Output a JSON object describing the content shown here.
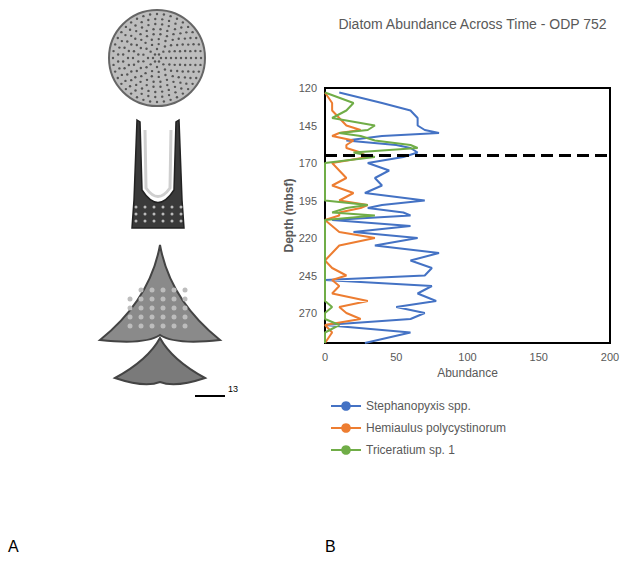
{
  "panel_labels": [
    "A",
    "B"
  ],
  "figure_a": {
    "scale_bar_label": "13"
  },
  "chart_data": {
    "type": "line",
    "title": "Diatom Abundance Across Time - ODP 752",
    "x_label": "Abundance",
    "y_label": "Depth (mbsf)",
    "orientation": "horizontal",
    "depth": [
      123,
      130,
      135,
      140,
      145,
      148,
      150,
      152,
      155,
      158,
      160,
      163,
      166,
      170,
      175,
      180,
      185,
      190,
      195,
      198,
      200,
      203,
      205,
      208,
      212,
      216,
      220,
      225,
      230,
      235,
      240,
      245,
      248,
      252,
      257,
      262,
      266,
      270,
      274,
      278,
      283,
      290
    ],
    "series": [
      {
        "name": "Stephanopyxis spp.",
        "color": "#4472C4",
        "values": [
          10,
          40,
          60,
          65,
          65,
          70,
          80,
          40,
          15,
          50,
          60,
          65,
          55,
          30,
          45,
          35,
          40,
          28,
          70,
          40,
          30,
          55,
          60,
          5,
          60,
          20,
          65,
          35,
          80,
          60,
          75,
          70,
          0,
          75,
          65,
          78,
          50,
          70,
          60,
          0,
          60,
          28
        ]
      },
      {
        "name": "Hemiaulus polycystinorum",
        "color": "#ED7D31",
        "values": [
          0,
          5,
          5,
          10,
          15,
          25,
          10,
          5,
          20,
          15,
          15,
          25,
          30,
          5,
          10,
          15,
          5,
          20,
          10,
          30,
          25,
          10,
          10,
          0,
          5,
          10,
          35,
          10,
          5,
          0,
          5,
          15,
          5,
          10,
          5,
          30,
          10,
          15,
          25,
          0,
          5,
          0
        ]
      },
      {
        "name": "Triceratium sp. 1",
        "color": "#70AD47",
        "values": [
          0,
          20,
          15,
          5,
          35,
          30,
          10,
          25,
          35,
          60,
          65,
          20,
          35,
          0,
          0,
          0,
          0,
          0,
          0,
          30,
          15,
          5,
          35,
          0,
          0,
          0,
          0,
          0,
          0,
          0,
          0,
          0,
          0,
          0,
          0,
          0,
          5,
          0,
          0,
          10,
          0,
          0
        ]
      }
    ],
    "boundary_depth": 165,
    "xlim": [
      0,
      200
    ],
    "xticks": [
      0,
      50,
      100,
      150,
      200
    ],
    "ylim": [
      120,
      290
    ],
    "yticks": [
      120,
      145,
      170,
      195,
      220,
      245,
      270
    ],
    "grid": false,
    "legend": "bottom"
  }
}
